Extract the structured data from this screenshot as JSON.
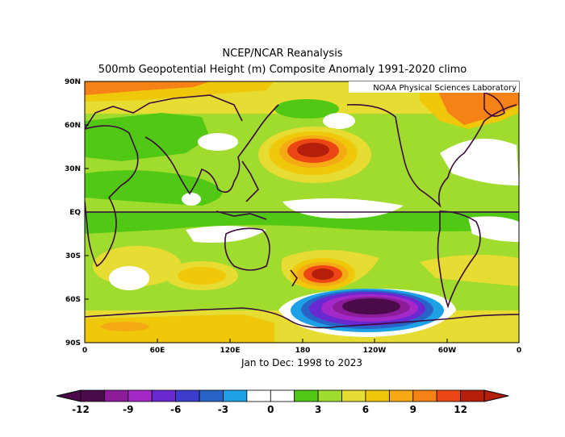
{
  "title": "NCEP/NCAR Reanalysis",
  "subtitle": "500mb Geopotential Height (m) Composite Anomaly 1991-2020 climo",
  "credit": "NOAA Physical Sciences Laboratory",
  "period": "Jan to Dec: 1998 to 2023",
  "lat_ticks": [
    "90N",
    "60N",
    "30N",
    "EQ",
    "30S",
    "60S",
    "90S"
  ],
  "lon_ticks": [
    "0",
    "60E",
    "120E",
    "180",
    "120W",
    "60W",
    "0"
  ],
  "colorbar": {
    "labels": [
      "-12",
      "-9",
      "-6",
      "-3",
      "0",
      "3",
      "6",
      "9",
      "12"
    ],
    "colors": [
      "#4b0b4b",
      "#8c1c99",
      "#a428c8",
      "#6a28d2",
      "#3c3ccd",
      "#2864c8",
      "#1ea0e6",
      "#ffffff",
      "#ffffff",
      "#50c814",
      "#a0dc2d",
      "#e6dc32",
      "#f0c80a",
      "#f5aa14",
      "#f58214",
      "#eb4614",
      "#b41e0a"
    ]
  },
  "map_colors": {
    "zero": "#ffffff",
    "pos1": "#50c814",
    "pos2": "#a0dc2d",
    "pos3": "#e6dc32",
    "pos4": "#f0c80a",
    "pos5": "#f5aa14",
    "pos6": "#f58214",
    "pos7": "#eb4614",
    "neg1": "#1ea0e6",
    "neg2": "#2864c8",
    "neg3": "#6a28d2",
    "neg4": "#a428c8",
    "neg5": "#8c1c99",
    "neg6": "#4b0b4b",
    "coast": "#3c0a3c"
  }
}
